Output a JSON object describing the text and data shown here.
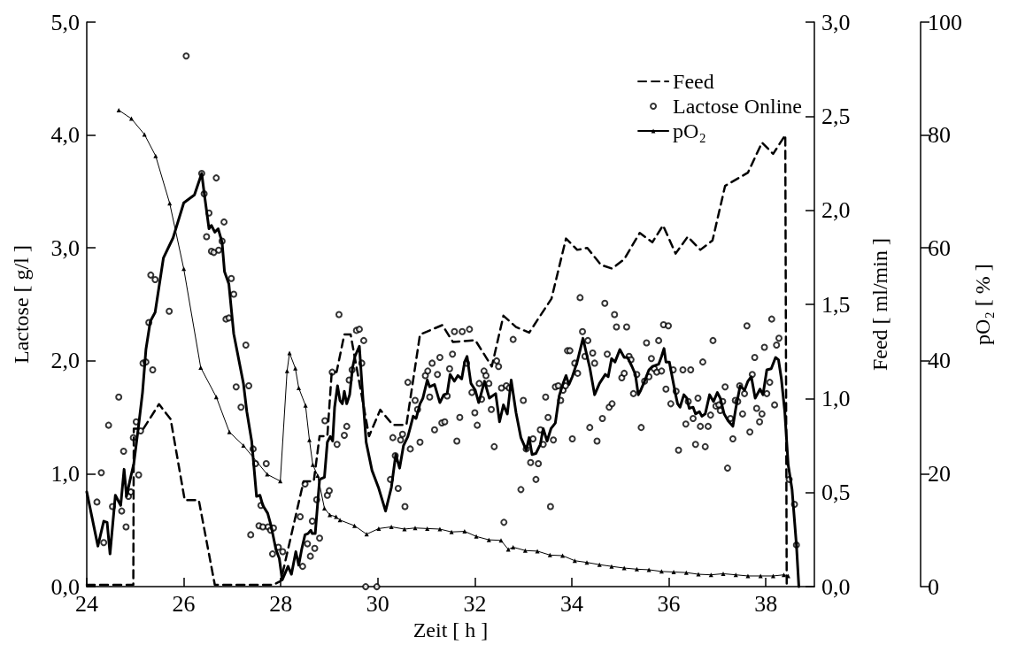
{
  "chart_data": {
    "type": "line",
    "xlabel": "Zeit [ h ]",
    "ylabel": "Lactose [ g/l ]",
    "y2label": "Feed [ ml/min ]",
    "y3label": "pO₂ [ % ]",
    "xlim": [
      24,
      39
    ],
    "xticks": [
      24,
      26,
      28,
      30,
      32,
      34,
      36,
      38
    ],
    "ylim": [
      0,
      5
    ],
    "yticks": [
      {
        "value": 0,
        "label": "0,0"
      },
      {
        "value": 1,
        "label": "1,0"
      },
      {
        "value": 2,
        "label": "2,0"
      },
      {
        "value": 3,
        "label": "3,0"
      },
      {
        "value": 4,
        "label": "4,0"
      },
      {
        "value": 5,
        "label": "5,0"
      }
    ],
    "y2lim": [
      0,
      3
    ],
    "y2ticks": [
      {
        "value": 0,
        "label": "0,0"
      },
      {
        "value": 0.5,
        "label": "0,5"
      },
      {
        "value": 1,
        "label": "1,0"
      },
      {
        "value": 1.5,
        "label": "1,5"
      },
      {
        "value": 2,
        "label": "2,0"
      },
      {
        "value": 2.5,
        "label": "2,5"
      },
      {
        "value": 3,
        "label": "3,0"
      }
    ],
    "y3lim": [
      0,
      100
    ],
    "y3ticks": [
      0,
      20,
      40,
      60,
      80,
      100
    ],
    "grid": false,
    "legend": "top right",
    "series": [
      {
        "name": "Feed",
        "axis": "y2",
        "color": "#000000",
        "line_style": "dashed",
        "marker": "none",
        "x": [
          24.0,
          24.96,
          24.97,
          25.17,
          25.49,
          25.73,
          26.02,
          26.31,
          26.64,
          27.84,
          28.0,
          28.47,
          28.68,
          28.8,
          28.96,
          29.05,
          29.15,
          29.31,
          29.44,
          29.82,
          30.05,
          30.31,
          30.59,
          30.87,
          31.33,
          31.55,
          32.01,
          32.35,
          32.59,
          32.85,
          33.12,
          33.58,
          33.88,
          34.11,
          34.32,
          34.6,
          34.83,
          35.08,
          35.4,
          35.66,
          35.88,
          36.14,
          36.39,
          36.65,
          36.9,
          37.16,
          37.63,
          37.92,
          38.15,
          38.4,
          38.43
        ],
        "values": [
          0.01,
          0.01,
          0.84,
          0.84,
          0.97,
          0.89,
          0.46,
          0.46,
          0.01,
          0.01,
          0.03,
          0.56,
          0.56,
          0.8,
          0.8,
          1.14,
          1.14,
          1.34,
          1.34,
          0.8,
          0.94,
          0.86,
          0.86,
          1.34,
          1.39,
          1.3,
          1.31,
          1.17,
          1.44,
          1.38,
          1.35,
          1.53,
          1.85,
          1.79,
          1.8,
          1.71,
          1.69,
          1.74,
          1.88,
          1.83,
          1.92,
          1.77,
          1.86,
          1.79,
          1.84,
          2.13,
          2.2,
          2.36,
          2.3,
          2.4,
          0.0
        ]
      },
      {
        "name": "Lactose Online",
        "type": "scatter",
        "axis": "y",
        "color": "#000000",
        "marker": "circle",
        "x": [
          24.3,
          24.21,
          24.35,
          24.45,
          24.53,
          24.66,
          24.72,
          24.76,
          24.81,
          24.86,
          24.91,
          24.96,
          25.02,
          25.07,
          25.11,
          25.16,
          25.22,
          25.28,
          25.32,
          25.36,
          25.41,
          25.7,
          26.05,
          26.37,
          26.42,
          26.52,
          26.47,
          26.57,
          26.62,
          26.67,
          26.72,
          26.79,
          26.83,
          26.87,
          26.93,
          26.98,
          27.03,
          27.08,
          27.18,
          27.28,
          27.34,
          27.43,
          27.48,
          27.55,
          27.59,
          27.63,
          27.7,
          27.74,
          27.79,
          27.85,
          27.83,
          27.95,
          28.04,
          27.38,
          28.4,
          28.45,
          28.5,
          28.55,
          28.61,
          28.65,
          28.7,
          28.74,
          28.8,
          28.91,
          28.96,
          29.0,
          29.06,
          29.16,
          29.2,
          29.31,
          29.36,
          29.41,
          29.47,
          29.56,
          29.62,
          29.67,
          29.71,
          29.75,
          29.98,
          30.26,
          30.31,
          30.36,
          30.42,
          30.47,
          30.51,
          30.56,
          30.62,
          30.67,
          30.77,
          30.82,
          30.87,
          30.98,
          31.03,
          31.07,
          31.12,
          31.17,
          31.23,
          31.28,
          31.32,
          31.38,
          31.43,
          31.48,
          31.54,
          31.58,
          31.63,
          31.69,
          31.74,
          31.83,
          31.89,
          31.94,
          32.0,
          32.05,
          32.09,
          32.14,
          32.19,
          32.23,
          32.29,
          32.34,
          32.4,
          32.45,
          32.49,
          32.55,
          32.6,
          32.65,
          32.71,
          32.79,
          32.95,
          33.0,
          33.06,
          33.15,
          33.2,
          33.26,
          33.31,
          33.35,
          33.41,
          33.46,
          33.51,
          33.56,
          33.62,
          33.66,
          33.72,
          33.77,
          33.82,
          33.87,
          33.91,
          33.96,
          34.01,
          34.06,
          34.12,
          34.17,
          34.22,
          34.27,
          34.33,
          34.37,
          34.43,
          34.47,
          34.52,
          34.63,
          34.68,
          34.73,
          34.77,
          34.83,
          34.88,
          34.92,
          35.03,
          35.08,
          35.13,
          35.18,
          35.22,
          35.27,
          35.34,
          35.43,
          35.5,
          35.54,
          35.59,
          35.64,
          35.7,
          35.75,
          35.79,
          35.85,
          35.89,
          35.94,
          35.99,
          36.04,
          36.09,
          36.15,
          36.2,
          36.29,
          36.35,
          36.4,
          36.45,
          36.5,
          36.55,
          36.6,
          36.65,
          36.7,
          36.75,
          36.81,
          36.86,
          36.91,
          36.97,
          37.03,
          37.06,
          37.11,
          37.16,
          37.21,
          37.27,
          37.32,
          37.37,
          37.42,
          37.46,
          37.52,
          37.56,
          37.61,
          37.67,
          37.72,
          37.77,
          37.81,
          37.87,
          37.92,
          37.97,
          38.02,
          38.08,
          38.12,
          38.18,
          38.22,
          38.27,
          38.48,
          38.59,
          38.63
        ],
        "values": [
          1.01,
          0.75,
          0.39,
          1.43,
          0.71,
          1.68,
          0.67,
          1.2,
          0.53,
          0.8,
          0.84,
          1.32,
          1.46,
          0.99,
          1.38,
          1.98,
          1.99,
          2.34,
          2.76,
          1.92,
          2.72,
          2.44,
          4.7,
          3.66,
          3.48,
          3.31,
          3.1,
          2.97,
          2.96,
          3.62,
          2.98,
          3.06,
          3.23,
          2.37,
          2.38,
          2.73,
          2.59,
          1.77,
          1.59,
          2.14,
          1.78,
          1.22,
          1.09,
          0.54,
          0.72,
          0.53,
          1.09,
          0.53,
          0.5,
          0.52,
          0.29,
          0.35,
          0.31,
          0.46,
          0.62,
          0.18,
          0.91,
          0.38,
          0.27,
          0.58,
          0.34,
          0.77,
          0.43,
          1.47,
          0.81,
          0.85,
          1.9,
          1.26,
          2.41,
          1.34,
          1.42,
          1.83,
          1.92,
          2.27,
          2.28,
          1.98,
          2.18,
          0.0,
          0.0,
          0.95,
          1.32,
          1.16,
          0.87,
          1.3,
          1.35,
          0.71,
          1.81,
          1.22,
          1.65,
          1.57,
          1.28,
          1.87,
          1.91,
          1.68,
          1.98,
          1.39,
          1.88,
          2.03,
          1.45,
          1.46,
          1.69,
          1.93,
          2.06,
          2.26,
          1.29,
          1.5,
          2.26,
          1.98,
          2.28,
          1.72,
          1.54,
          1.43,
          1.8,
          1.66,
          1.91,
          1.87,
          1.8,
          1.57,
          1.24,
          2.0,
          1.95,
          1.76,
          0.57,
          1.78,
          1.76,
          2.19,
          0.86,
          1.65,
          1.22,
          1.1,
          1.31,
          0.95,
          1.09,
          1.39,
          1.26,
          1.68,
          1.5,
          0.71,
          1.3,
          1.77,
          1.78,
          1.65,
          1.74,
          1.78,
          2.09,
          2.09,
          1.31,
          1.98,
          1.89,
          2.56,
          2.26,
          2.04,
          2.18,
          1.41,
          2.07,
          1.98,
          1.29,
          1.49,
          2.51,
          2.06,
          1.59,
          1.62,
          2.41,
          2.3,
          1.85,
          1.89,
          2.3,
          2.04,
          2.01,
          1.71,
          1.88,
          1.41,
          1.82,
          2.16,
          1.86,
          2.02,
          1.93,
          1.9,
          2.18,
          1.91,
          2.32,
          1.75,
          2.31,
          1.62,
          1.92,
          1.73,
          1.21,
          1.92,
          1.44,
          1.64,
          1.92,
          1.49,
          1.26,
          1.67,
          1.42,
          1.99,
          1.24,
          1.42,
          1.52,
          2.18,
          1.6,
          1.61,
          1.56,
          1.64,
          1.77,
          1.05,
          1.49,
          1.31,
          1.65,
          1.64,
          1.78,
          1.53,
          1.71,
          2.31,
          1.37,
          1.88,
          2.03,
          1.58,
          1.46,
          1.53,
          2.12,
          1.71,
          1.81,
          2.37,
          1.61,
          2.14,
          2.2,
          0.95,
          0.73,
          0.37
        ]
      },
      {
        "name": "pO₂",
        "axis": "y3",
        "color": "#000000",
        "line_style": "solid",
        "marker": "triangle",
        "x": [
          24.66,
          24.92,
          25.19,
          25.42,
          25.71,
          26.0,
          26.35,
          26.67,
          26.94,
          27.23,
          27.72,
          27.99,
          28.13,
          28.18,
          28.3,
          28.37,
          28.51,
          28.59,
          28.66,
          28.76,
          28.9,
          29.01,
          29.14,
          29.22,
          29.52,
          29.77,
          30.02,
          30.28,
          30.55,
          30.77,
          31.02,
          31.28,
          31.52,
          31.79,
          32.03,
          32.29,
          32.54,
          32.69,
          32.79,
          33.04,
          33.29,
          33.55,
          33.81,
          34.06,
          34.31,
          34.57,
          34.82,
          35.08,
          35.34,
          35.59,
          35.85,
          36.1,
          36.36,
          36.61,
          36.87,
          37.12,
          37.38,
          37.63,
          37.89,
          38.15,
          38.37,
          38.46
        ],
        "values": [
          84.4,
          82.9,
          80.1,
          76.3,
          67.9,
          56.3,
          38.8,
          33.6,
          27.4,
          25.0,
          19.9,
          18.7,
          38.2,
          41.4,
          38.7,
          35.2,
          32.1,
          26.0,
          21.6,
          19.7,
          13.9,
          12.7,
          12.4,
          11.8,
          10.8,
          9.3,
          10.3,
          10.6,
          10.2,
          10.4,
          10.3,
          10.2,
          9.7,
          9.8,
          8.9,
          8.3,
          8.2,
          6.6,
          7.0,
          6.4,
          6.3,
          5.6,
          5.5,
          4.6,
          4.3,
          3.9,
          3.6,
          3.3,
          3.1,
          3.0,
          2.7,
          2.6,
          2.5,
          2.2,
          2.1,
          2.3,
          2.1,
          1.9,
          1.9,
          1.9,
          2.1,
          1.9
        ]
      },
      {
        "axis": "y",
        "color": "#000000",
        "line_style": "solid",
        "marker": "none",
        "x": [
          24.0,
          24.23,
          24.35,
          24.42,
          24.48,
          24.59,
          24.7,
          24.77,
          24.82,
          24.89,
          24.97,
          25.07,
          25.15,
          25.22,
          25.31,
          25.41,
          25.58,
          25.78,
          26.0,
          26.22,
          26.37,
          26.42,
          26.52,
          26.57,
          26.64,
          26.71,
          26.79,
          26.84,
          26.93,
          27.03,
          27.23,
          27.3,
          27.4,
          27.5,
          27.57,
          27.63,
          27.73,
          27.8,
          27.9,
          27.97,
          28.03,
          28.15,
          28.22,
          28.31,
          28.37,
          28.43,
          28.5,
          28.56,
          28.62,
          28.65,
          28.71,
          28.8,
          28.9,
          28.96,
          29.02,
          29.07,
          29.11,
          29.17,
          29.22,
          29.27,
          29.31,
          29.36,
          29.42,
          29.48,
          29.53,
          29.62,
          29.68,
          29.76,
          29.88,
          30.02,
          30.16,
          30.28,
          30.37,
          30.45,
          30.53,
          30.62,
          30.67,
          30.73,
          30.79,
          30.87,
          30.93,
          31.02,
          31.07,
          31.17,
          31.28,
          31.36,
          31.43,
          31.49,
          31.58,
          31.65,
          31.73,
          31.79,
          31.84,
          31.92,
          32.01,
          32.08,
          32.2,
          32.3,
          32.43,
          32.51,
          32.59,
          32.67,
          32.75,
          32.85,
          32.95,
          33.06,
          33.12,
          33.18,
          33.26,
          33.35,
          33.41,
          33.49,
          33.57,
          33.66,
          33.74,
          33.82,
          33.88,
          33.94,
          34.01,
          34.11,
          34.23,
          34.32,
          34.37,
          34.47,
          34.57,
          34.69,
          34.75,
          34.82,
          34.89,
          34.99,
          35.08,
          35.15,
          35.24,
          35.31,
          35.37,
          35.41,
          35.5,
          35.59,
          35.66,
          35.79,
          35.85,
          35.9,
          35.94,
          36.01,
          36.14,
          36.18,
          36.23,
          36.31,
          36.37,
          36.42,
          36.5,
          36.55,
          36.63,
          36.68,
          36.75,
          36.84,
          36.92,
          37.0,
          37.06,
          37.14,
          37.22,
          37.32,
          37.38,
          37.47,
          37.56,
          37.63,
          37.7,
          37.78,
          37.88,
          37.94,
          38.02,
          38.11,
          38.2,
          38.26,
          38.32,
          38.39,
          38.46,
          38.54,
          38.63,
          38.68
        ],
        "values": [
          0.84,
          0.36,
          0.58,
          0.57,
          0.29,
          0.81,
          0.72,
          1.04,
          0.8,
          0.94,
          1.09,
          1.43,
          1.72,
          2.1,
          2.35,
          2.43,
          2.91,
          3.09,
          3.4,
          3.47,
          3.66,
          3.49,
          3.17,
          3.2,
          3.14,
          3.17,
          3.05,
          2.79,
          2.68,
          2.24,
          1.8,
          1.55,
          1.29,
          0.8,
          0.81,
          0.72,
          0.65,
          0.54,
          0.33,
          0.25,
          0.06,
          0.18,
          0.11,
          0.31,
          0.19,
          0.33,
          0.46,
          0.47,
          0.5,
          0.47,
          0.47,
          0.95,
          0.97,
          1.28,
          1.33,
          1.29,
          1.59,
          1.78,
          1.65,
          1.62,
          1.73,
          1.62,
          1.7,
          1.94,
          2.04,
          2.13,
          1.75,
          1.28,
          1.03,
          0.87,
          0.67,
          0.88,
          1.17,
          1.05,
          1.25,
          1.33,
          1.41,
          1.51,
          1.49,
          1.62,
          1.67,
          1.83,
          1.77,
          1.79,
          1.63,
          1.7,
          1.71,
          1.88,
          1.82,
          1.87,
          1.84,
          1.99,
          2.04,
          1.8,
          1.74,
          1.63,
          1.82,
          1.67,
          1.71,
          1.46,
          1.61,
          1.53,
          1.83,
          1.54,
          1.32,
          1.21,
          1.32,
          1.17,
          1.18,
          1.26,
          1.4,
          1.29,
          1.4,
          1.45,
          1.69,
          1.8,
          1.87,
          1.79,
          1.86,
          1.99,
          2.2,
          2.03,
          1.94,
          1.7,
          1.8,
          1.88,
          1.86,
          2.02,
          1.99,
          2.1,
          2.03,
          2.03,
          1.95,
          1.88,
          1.7,
          1.73,
          1.82,
          1.92,
          1.95,
          1.97,
          2.04,
          2.11,
          1.99,
          1.99,
          1.7,
          1.62,
          1.59,
          1.7,
          1.67,
          1.58,
          1.59,
          1.53,
          1.55,
          1.51,
          1.53,
          1.7,
          1.64,
          1.72,
          1.67,
          1.53,
          1.47,
          1.42,
          1.58,
          1.78,
          1.74,
          1.82,
          1.86,
          1.67,
          1.75,
          1.7,
          1.92,
          1.93,
          2.03,
          2.01,
          1.84,
          1.55,
          1.08,
          0.86,
          0.37,
          0.0
        ]
      }
    ]
  }
}
